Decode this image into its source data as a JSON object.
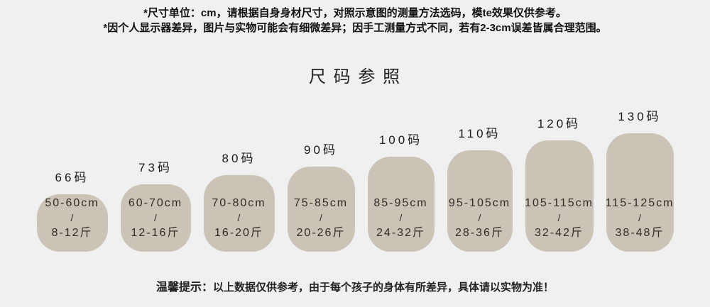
{
  "colors": {
    "background": "#f0f0f0",
    "block_fill": "#cbc4b6"
  },
  "disclaimer": {
    "line1": "*尺寸单位：cm，请根据自身身材尺寸，对照示意图的测量方法选码，模te效果仅供参考。",
    "line2": "*因个人显示器差异，图片与实物可能会有细微差异；因手工测量方式不同，若有2-3cm误差皆属合理范围。"
  },
  "title": "尺 码 参 照",
  "sizes": [
    {
      "label": "66码",
      "height_range": "50-60cm",
      "separator": "/",
      "weight_range": "8-12斤"
    },
    {
      "label": "73码",
      "height_range": "60-70cm",
      "separator": "/",
      "weight_range": "12-16斤"
    },
    {
      "label": "80码",
      "height_range": "70-80cm",
      "separator": "/",
      "weight_range": "16-20斤"
    },
    {
      "label": "90码",
      "height_range": "75-85cm",
      "separator": "/",
      "weight_range": "20-26斤"
    },
    {
      "label": "100码",
      "height_range": "85-95cm",
      "separator": "/",
      "weight_range": "24-32斤"
    },
    {
      "label": "110码",
      "height_range": "95-105cm",
      "separator": "/",
      "weight_range": "28-36斤"
    },
    {
      "label": "120码",
      "height_range": "105-115cm",
      "separator": "/",
      "weight_range": "32-42斤"
    },
    {
      "label": "130码",
      "height_range": "115-125cm",
      "separator": "/",
      "weight_range": "38-48斤"
    }
  ],
  "tip": {
    "prefix": "温馨提示：",
    "text": "以上数据仅供参考，由于每个孩子的身体有所差异，具体请以实物为准！"
  },
  "chart_data": {
    "type": "bar",
    "title": "尺码参照",
    "categories": [
      "66码",
      "73码",
      "80码",
      "90码",
      "100码",
      "110码",
      "120码",
      "130码"
    ],
    "series": [
      {
        "name": "cm",
        "values": [
          "50-60",
          "60-70",
          "70-80",
          "75-85",
          "85-95",
          "95-105",
          "105-115",
          "115-125"
        ]
      },
      {
        "name": "斤",
        "values": [
          "8-12",
          "12-16",
          "16-20",
          "20-26",
          "24-32",
          "28-36",
          "32-42",
          "38-48"
        ]
      }
    ],
    "layout": "bars bottom-aligned, height increases with size code, labels above bars, ranges inside bars"
  }
}
